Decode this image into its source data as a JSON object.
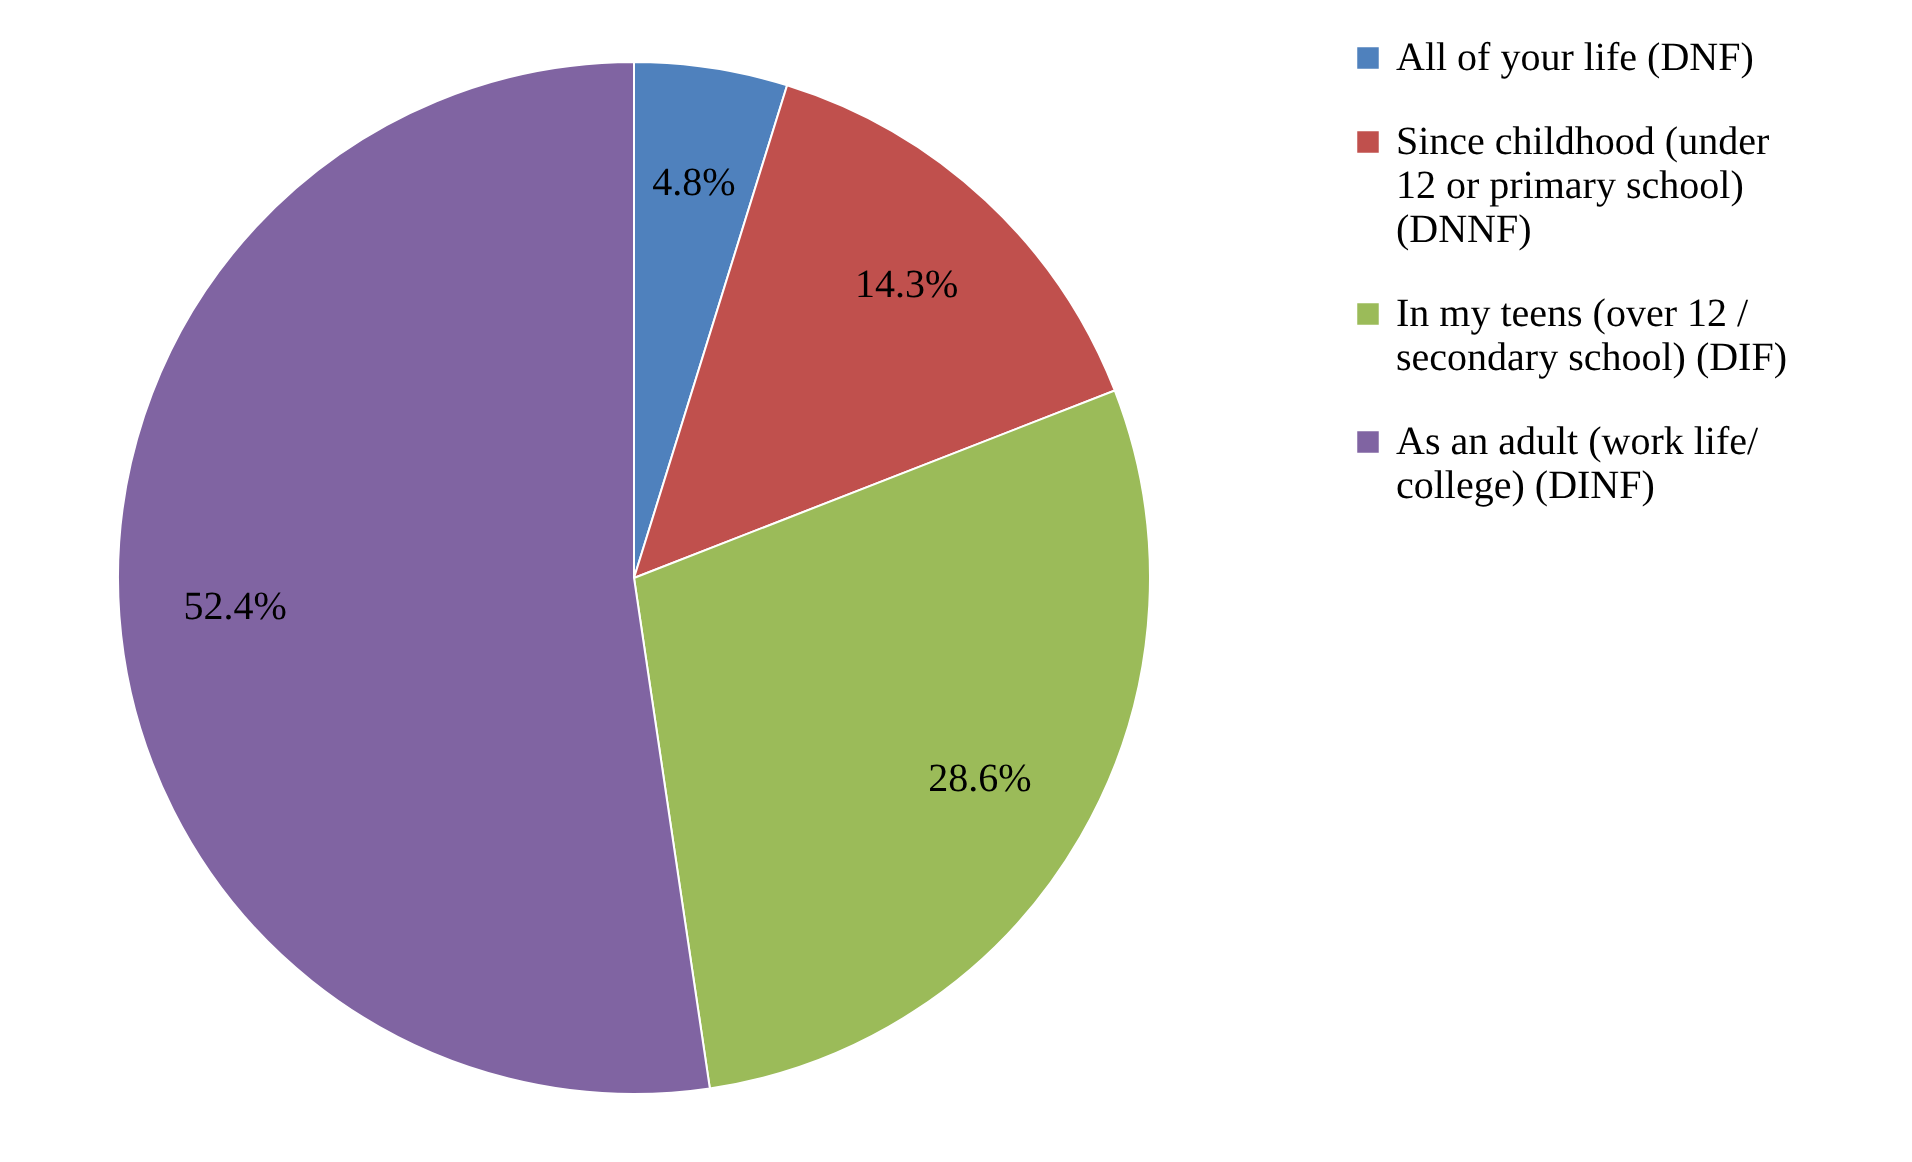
{
  "chart_data": {
    "type": "pie",
    "categories": [
      "All of your life (DNF)",
      "Since childhood (under 12 or primary school) (DNNF)",
      "In my teens (over 12 / secondary school) (DIF)",
      "As an adult (work life/ college) (DINF)"
    ],
    "values": [
      4.8,
      14.3,
      28.6,
      52.4
    ],
    "colors": [
      "#4f81bd",
      "#c0504d",
      "#9bbb59",
      "#8064a2"
    ],
    "value_labels": [
      "4.8%",
      "14.3%",
      "28.6%",
      "52.4%"
    ],
    "legend": "right"
  }
}
